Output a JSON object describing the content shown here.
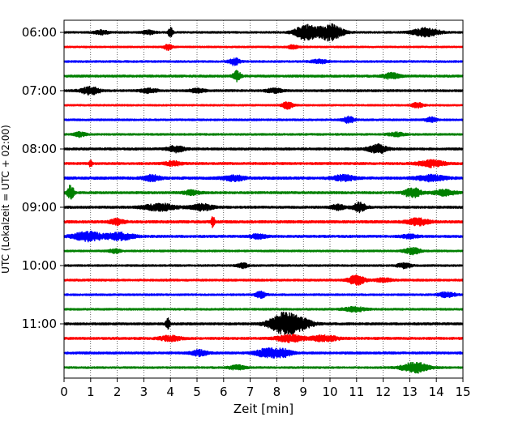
{
  "chart_data": {
    "type": "line",
    "subtype": "helicorder",
    "xlabel": "Zeit  [min]",
    "ylabel": "UTC (Lokalzeit = UTC + 02:00)",
    "xlim": [
      0,
      15
    ],
    "x_ticks": [
      0,
      1,
      2,
      3,
      4,
      5,
      6,
      7,
      8,
      9,
      10,
      11,
      12,
      13,
      14,
      15
    ],
    "x_tick_labels": [
      "0",
      "1",
      "2",
      "3",
      "4",
      "5",
      "6",
      "7",
      "8",
      "9",
      "10",
      "11",
      "12",
      "13",
      "14",
      "15"
    ],
    "y_tick_labels": [
      "06:00",
      "07:00",
      "08:00",
      "09:00",
      "10:00",
      "11:00"
    ],
    "grid": "vertical dotted",
    "trace_interval_minutes": 15,
    "trace_color_cycle": [
      "#000000",
      "#ff0000",
      "#0000ff",
      "#008000"
    ],
    "traces": [
      {
        "start": "06:00",
        "noise": 0.25,
        "events": [
          [
            1.4,
            0.6,
            0.25
          ],
          [
            3.2,
            0.5,
            0.25
          ],
          [
            4.0,
            1.5,
            0.08
          ],
          [
            9.1,
            2.2,
            0.4
          ],
          [
            10.0,
            2.4,
            0.45
          ],
          [
            13.6,
            1.2,
            0.5
          ]
        ]
      },
      {
        "start": "06:15",
        "noise": 0.22,
        "events": [
          [
            3.9,
            0.9,
            0.15
          ],
          [
            8.6,
            0.5,
            0.2
          ]
        ]
      },
      {
        "start": "06:30",
        "noise": 0.25,
        "events": [
          [
            6.4,
            1.0,
            0.2
          ],
          [
            9.6,
            0.5,
            0.3
          ]
        ]
      },
      {
        "start": "06:45",
        "noise": 0.3,
        "events": [
          [
            6.5,
            1.4,
            0.15
          ],
          [
            12.3,
            0.8,
            0.3
          ]
        ]
      },
      {
        "start": "07:00",
        "noise": 0.28,
        "events": [
          [
            1.0,
            1.1,
            0.35
          ],
          [
            3.2,
            0.6,
            0.3
          ],
          [
            5.0,
            0.5,
            0.3
          ],
          [
            7.9,
            0.6,
            0.3
          ]
        ]
      },
      {
        "start": "07:15",
        "noise": 0.22,
        "events": [
          [
            8.4,
            1.0,
            0.2
          ],
          [
            13.3,
            0.8,
            0.2
          ]
        ]
      },
      {
        "start": "07:30",
        "noise": 0.25,
        "events": [
          [
            10.7,
            0.9,
            0.2
          ],
          [
            13.8,
            0.7,
            0.2
          ]
        ]
      },
      {
        "start": "07:45",
        "noise": 0.25,
        "events": [
          [
            0.6,
            0.7,
            0.2
          ],
          [
            12.5,
            0.5,
            0.3
          ]
        ]
      },
      {
        "start": "08:00",
        "noise": 0.3,
        "events": [
          [
            4.2,
            0.9,
            0.3
          ],
          [
            11.8,
            1.2,
            0.35
          ]
        ]
      },
      {
        "start": "08:15",
        "noise": 0.3,
        "events": [
          [
            1.0,
            0.9,
            0.06
          ],
          [
            4.1,
            0.6,
            0.3
          ],
          [
            13.8,
            0.9,
            0.5
          ]
        ]
      },
      {
        "start": "08:30",
        "noise": 0.35,
        "events": [
          [
            3.3,
            0.8,
            0.3
          ],
          [
            6.4,
            0.7,
            0.4
          ],
          [
            10.5,
            0.8,
            0.4
          ],
          [
            13.8,
            0.8,
            0.5
          ]
        ]
      },
      {
        "start": "08:45",
        "noise": 0.3,
        "events": [
          [
            0.25,
            2.2,
            0.12
          ],
          [
            4.8,
            0.6,
            0.3
          ],
          [
            13.1,
            1.4,
            0.3
          ],
          [
            14.3,
            0.8,
            0.4
          ]
        ]
      },
      {
        "start": "09:00",
        "noise": 0.3,
        "events": [
          [
            3.6,
            1.0,
            0.6
          ],
          [
            5.2,
            0.9,
            0.4
          ],
          [
            10.3,
            0.7,
            0.25
          ],
          [
            11.1,
            1.3,
            0.25
          ]
        ]
      },
      {
        "start": "09:15",
        "noise": 0.35,
        "events": [
          [
            2.0,
            0.8,
            0.25
          ],
          [
            5.6,
            1.6,
            0.06
          ],
          [
            13.3,
            0.9,
            0.4
          ]
        ]
      },
      {
        "start": "09:30",
        "noise": 0.3,
        "events": [
          [
            0.9,
            1.3,
            0.55
          ],
          [
            2.1,
            1.0,
            0.5
          ],
          [
            7.3,
            0.6,
            0.3
          ],
          [
            13.0,
            0.5,
            0.3
          ]
        ]
      },
      {
        "start": "09:45",
        "noise": 0.25,
        "events": [
          [
            1.9,
            0.6,
            0.2
          ],
          [
            13.1,
            0.9,
            0.3
          ]
        ]
      },
      {
        "start": "10:00",
        "noise": 0.25,
        "events": [
          [
            6.7,
            0.7,
            0.2
          ],
          [
            12.8,
            0.7,
            0.25
          ]
        ]
      },
      {
        "start": "10:15",
        "noise": 0.28,
        "events": [
          [
            11.0,
            1.3,
            0.3
          ],
          [
            12.0,
            0.5,
            0.3
          ]
        ]
      },
      {
        "start": "10:30",
        "noise": 0.25,
        "events": [
          [
            7.4,
            0.9,
            0.2
          ],
          [
            14.4,
            0.7,
            0.3
          ]
        ]
      },
      {
        "start": "10:45",
        "noise": 0.25,
        "events": [
          [
            10.9,
            0.7,
            0.4
          ]
        ]
      },
      {
        "start": "11:00",
        "noise": 0.3,
        "events": [
          [
            3.9,
            1.6,
            0.08
          ],
          [
            8.3,
            3.2,
            0.55
          ],
          [
            9.0,
            1.0,
            0.4
          ]
        ]
      },
      {
        "start": "11:15",
        "noise": 0.3,
        "events": [
          [
            4.0,
            0.7,
            0.4
          ],
          [
            8.5,
            1.0,
            0.5
          ],
          [
            9.8,
            0.8,
            0.5
          ]
        ]
      },
      {
        "start": "11:30",
        "noise": 0.3,
        "events": [
          [
            5.1,
            0.8,
            0.3
          ],
          [
            7.7,
            1.4,
            0.45
          ],
          [
            8.3,
            0.8,
            0.3
          ]
        ]
      },
      {
        "start": "11:45",
        "noise": 0.25,
        "events": [
          [
            6.5,
            0.6,
            0.3
          ],
          [
            13.2,
            1.5,
            0.5
          ]
        ]
      }
    ]
  }
}
